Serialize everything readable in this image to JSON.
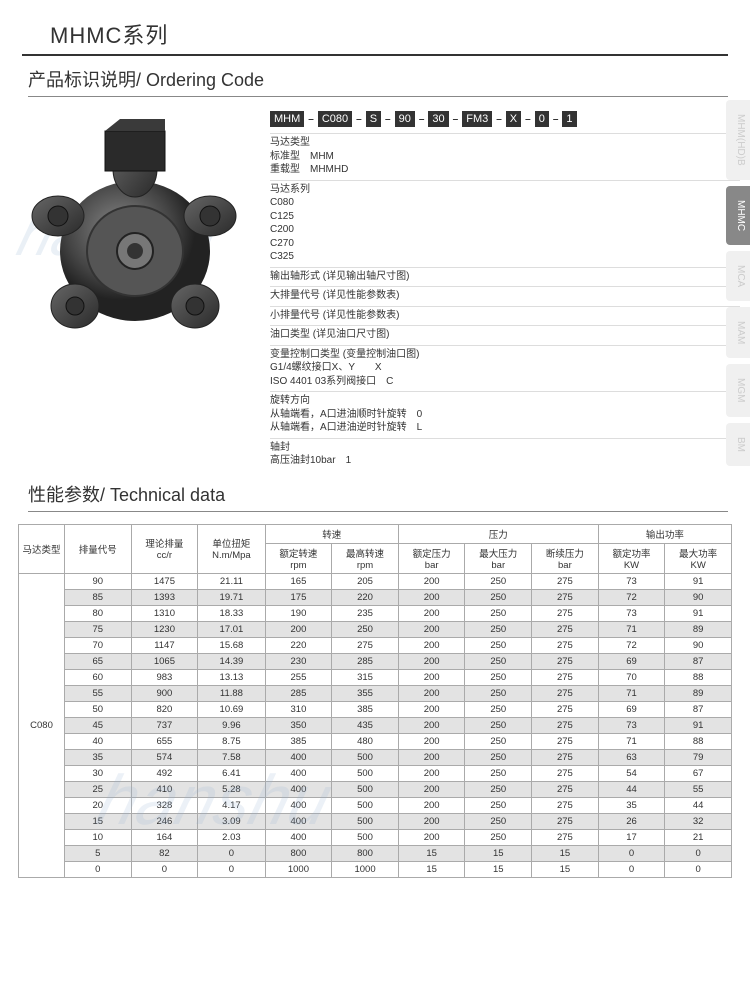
{
  "header": {
    "title": "MHMC系列"
  },
  "ordering": {
    "title": "产品标识说明/ Ordering Code",
    "codes": [
      "MHM",
      "C080",
      "S",
      "90",
      "30",
      "FM3",
      "X",
      "0",
      "1"
    ],
    "groups": [
      {
        "title": "马达类型",
        "lines": [
          "标准型　MHM",
          "重载型　MHMHD"
        ]
      },
      {
        "title": "马达系列",
        "lines": [
          "C080",
          "C125",
          "C200",
          "C270",
          "C325"
        ]
      },
      {
        "title": "输出轴形式 (详见输出轴尺寸图)",
        "lines": []
      },
      {
        "title": "大排量代号 (详见性能参数表)",
        "lines": []
      },
      {
        "title": "小排量代号 (详见性能参数表)",
        "lines": []
      },
      {
        "title": "油口类型 (详见油口尺寸图)",
        "lines": []
      },
      {
        "title": "变量控制口类型 (变量控制油口图)",
        "lines": [
          "G1/4螺纹接口X、Y　　X",
          "ISO 4401 03系列阀接口　C"
        ]
      },
      {
        "title": "旋转方向",
        "lines": [
          "从轴端看，A口进油顺时针旋转　0",
          "从轴端看，A口进油逆时针旋转　L"
        ]
      },
      {
        "title": "轴封",
        "lines": [
          "高压油封10bar　1"
        ]
      }
    ]
  },
  "tabs": [
    {
      "label": "MHM(HD)B",
      "active": false
    },
    {
      "label": "MHMC",
      "active": true
    },
    {
      "label": "MCA",
      "active": false
    },
    {
      "label": "MAM",
      "active": false
    },
    {
      "label": "MGM",
      "active": false
    },
    {
      "label": "BM",
      "active": false
    }
  ],
  "technical": {
    "title": "性能参数/ Technical data",
    "header_groups": [
      {
        "label": "转速",
        "span": 2
      },
      {
        "label": "压力",
        "span": 3
      },
      {
        "label": "输出功率",
        "span": 2
      }
    ],
    "columns": [
      "马达类型",
      "排量代号",
      "理论排量\ncc/r",
      "单位扭矩\nN.m/Mpa",
      "额定转速\nrpm",
      "最高转速\nrpm",
      "额定压力\nbar",
      "最大压力\nbar",
      "断续压力\nbar",
      "额定功率\nKW",
      "最大功率\nKW"
    ],
    "model": "C080",
    "rows": [
      {
        "d": [
          90,
          1475,
          "21.11",
          165,
          205,
          200,
          250,
          275,
          73,
          91
        ],
        "hl": false
      },
      {
        "d": [
          85,
          1393,
          "19.71",
          175,
          220,
          200,
          250,
          275,
          72,
          90
        ],
        "hl": true
      },
      {
        "d": [
          80,
          1310,
          "18.33",
          190,
          235,
          200,
          250,
          275,
          73,
          91
        ],
        "hl": false
      },
      {
        "d": [
          75,
          1230,
          "17.01",
          200,
          250,
          200,
          250,
          275,
          71,
          89
        ],
        "hl": true
      },
      {
        "d": [
          70,
          1147,
          "15.68",
          220,
          275,
          200,
          250,
          275,
          72,
          90
        ],
        "hl": false
      },
      {
        "d": [
          65,
          1065,
          "14.39",
          230,
          285,
          200,
          250,
          275,
          69,
          87
        ],
        "hl": true
      },
      {
        "d": [
          60,
          983,
          "13.13",
          255,
          315,
          200,
          250,
          275,
          70,
          88
        ],
        "hl": false
      },
      {
        "d": [
          55,
          900,
          "11.88",
          285,
          355,
          200,
          250,
          275,
          71,
          89
        ],
        "hl": true
      },
      {
        "d": [
          50,
          820,
          "10.69",
          310,
          385,
          200,
          250,
          275,
          69,
          87
        ],
        "hl": false
      },
      {
        "d": [
          45,
          737,
          "9.96",
          350,
          435,
          200,
          250,
          275,
          73,
          91
        ],
        "hl": true
      },
      {
        "d": [
          40,
          655,
          "8.75",
          385,
          480,
          200,
          250,
          275,
          71,
          88
        ],
        "hl": false
      },
      {
        "d": [
          35,
          574,
          "7.58",
          400,
          500,
          200,
          250,
          275,
          63,
          79
        ],
        "hl": true
      },
      {
        "d": [
          30,
          492,
          "6.41",
          400,
          500,
          200,
          250,
          275,
          54,
          67
        ],
        "hl": false
      },
      {
        "d": [
          25,
          410,
          "5.28",
          400,
          500,
          200,
          250,
          275,
          44,
          55
        ],
        "hl": true
      },
      {
        "d": [
          20,
          328,
          "4.17",
          400,
          500,
          200,
          250,
          275,
          35,
          44
        ],
        "hl": false
      },
      {
        "d": [
          15,
          246,
          "3.09",
          400,
          500,
          200,
          250,
          275,
          26,
          32
        ],
        "hl": true
      },
      {
        "d": [
          10,
          164,
          "2.03",
          400,
          500,
          200,
          250,
          275,
          17,
          21
        ],
        "hl": false
      },
      {
        "d": [
          5,
          82,
          "0",
          800,
          800,
          15,
          15,
          15,
          0,
          0
        ],
        "hl": true
      },
      {
        "d": [
          0,
          0,
          "0",
          1000,
          1000,
          15,
          15,
          15,
          0,
          0
        ],
        "hl": false
      }
    ],
    "colors": {
      "border": "#aaaaaa",
      "highlight_bg": "#e3e3e3",
      "text": "#333333"
    }
  }
}
